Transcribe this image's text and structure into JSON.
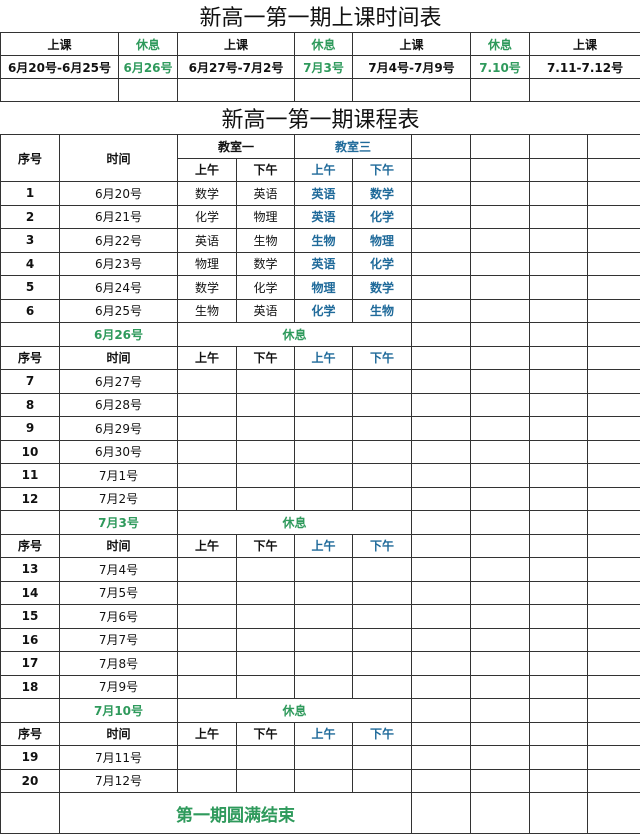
{
  "schedule": {
    "title": "新高一第一期上课时间表",
    "headers": [
      "上课",
      "休息",
      "上课",
      "休息",
      "上课",
      "休息",
      "上课"
    ],
    "dates": [
      "6月20号-6月25号",
      "6月26号",
      "6月27号-7月2号",
      "7月3号",
      "7月4号-7月9号",
      "7.10号",
      "7.11-7.12号"
    ]
  },
  "course": {
    "title": "新高一第一期课程表",
    "col_seq": "序号",
    "col_time": "时间",
    "room1": "教室一",
    "room3": "教室三",
    "am": "上午",
    "pm": "下午",
    "rest_label": "休息",
    "blocks": [
      {
        "rows": [
          {
            "n": "1",
            "d": "6月20号",
            "c": [
              "数学",
              "英语",
              "英语",
              "数学"
            ]
          },
          {
            "n": "2",
            "d": "6月21号",
            "c": [
              "化学",
              "物理",
              "英语",
              "化学"
            ]
          },
          {
            "n": "3",
            "d": "6月22号",
            "c": [
              "英语",
              "生物",
              "生物",
              "物理"
            ]
          },
          {
            "n": "4",
            "d": "6月23号",
            "c": [
              "物理",
              "数学",
              "英语",
              "化学"
            ]
          },
          {
            "n": "5",
            "d": "6月24号",
            "c": [
              "数学",
              "化学",
              "物理",
              "数学"
            ]
          },
          {
            "n": "6",
            "d": "6月25号",
            "c": [
              "生物",
              "英语",
              "化学",
              "生物"
            ]
          }
        ],
        "rest_date": "6月26号"
      },
      {
        "rows": [
          {
            "n": "7",
            "d": "6月27号",
            "c": [
              "",
              "",
              "",
              ""
            ]
          },
          {
            "n": "8",
            "d": "6月28号",
            "c": [
              "",
              "",
              "",
              ""
            ]
          },
          {
            "n": "9",
            "d": "6月29号",
            "c": [
              "",
              "",
              "",
              ""
            ]
          },
          {
            "n": "10",
            "d": "6月30号",
            "c": [
              "",
              "",
              "",
              ""
            ]
          },
          {
            "n": "11",
            "d": "7月1号",
            "c": [
              "",
              "",
              "",
              ""
            ]
          },
          {
            "n": "12",
            "d": "7月2号",
            "c": [
              "",
              "",
              "",
              ""
            ]
          }
        ],
        "rest_date": "7月3号"
      },
      {
        "rows": [
          {
            "n": "13",
            "d": "7月4号",
            "c": [
              "",
              "",
              "",
              ""
            ]
          },
          {
            "n": "14",
            "d": "7月5号",
            "c": [
              "",
              "",
              "",
              ""
            ]
          },
          {
            "n": "15",
            "d": "7月6号",
            "c": [
              "",
              "",
              "",
              ""
            ]
          },
          {
            "n": "16",
            "d": "7月7号",
            "c": [
              "",
              "",
              "",
              ""
            ]
          },
          {
            "n": "17",
            "d": "7月8号",
            "c": [
              "",
              "",
              "",
              ""
            ]
          },
          {
            "n": "18",
            "d": "7月9号",
            "c": [
              "",
              "",
              "",
              ""
            ]
          }
        ],
        "rest_date": "7月10号"
      },
      {
        "rows": [
          {
            "n": "19",
            "d": "7月11号",
            "c": [
              "",
              "",
              "",
              ""
            ]
          },
          {
            "n": "20",
            "d": "7月12号",
            "c": [
              "",
              "",
              "",
              ""
            ]
          }
        ]
      }
    ],
    "footer": "第一期圆满结束"
  },
  "colors": {
    "rest": "#2f9a5c",
    "room3": "#1f6a9a"
  }
}
